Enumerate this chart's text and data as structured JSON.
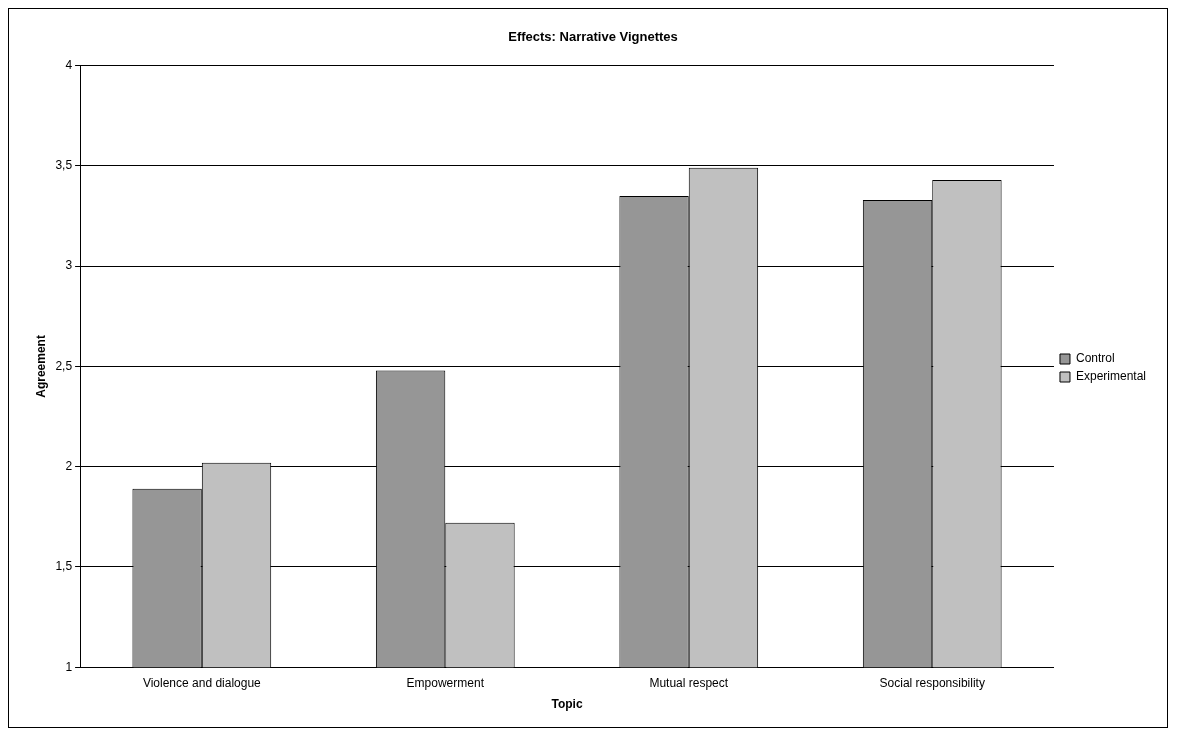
{
  "chart_data": {
    "type": "bar",
    "title": "Effects: Narrative Vignettes",
    "xlabel": "Topic",
    "ylabel": "Agreement",
    "categories": [
      "Violence and dialogue",
      "Empowerment",
      "Mutual respect",
      "Social responsibility"
    ],
    "series": [
      {
        "name": "Control",
        "color": "#969696",
        "values": [
          1.89,
          2.48,
          3.35,
          3.33
        ]
      },
      {
        "name": "Experimental",
        "color": "#c0c0c0",
        "values": [
          2.02,
          1.72,
          3.49,
          3.43
        ]
      }
    ],
    "ylim": [
      1,
      4
    ],
    "yticks": [
      1,
      {
        "value": 1.5,
        "label": "1,5"
      },
      2,
      {
        "value": 2.5,
        "label": "2,5"
      },
      3,
      {
        "value": 3.5,
        "label": "3,5"
      },
      4
    ],
    "grid": "y",
    "legend": "right"
  }
}
